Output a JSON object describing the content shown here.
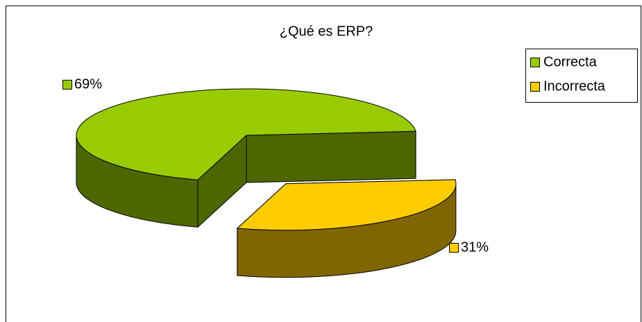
{
  "chart_data": {
    "type": "pie",
    "title": "¿Qué es ERP?",
    "categories": [
      "Correcta",
      "Incorrecta"
    ],
    "values": [
      69,
      31
    ],
    "value_labels": [
      "69%",
      "31%"
    ],
    "colors": [
      "#99cc00",
      "#ffcc00"
    ],
    "exploded": [
      false,
      true
    ],
    "legend": "right"
  }
}
